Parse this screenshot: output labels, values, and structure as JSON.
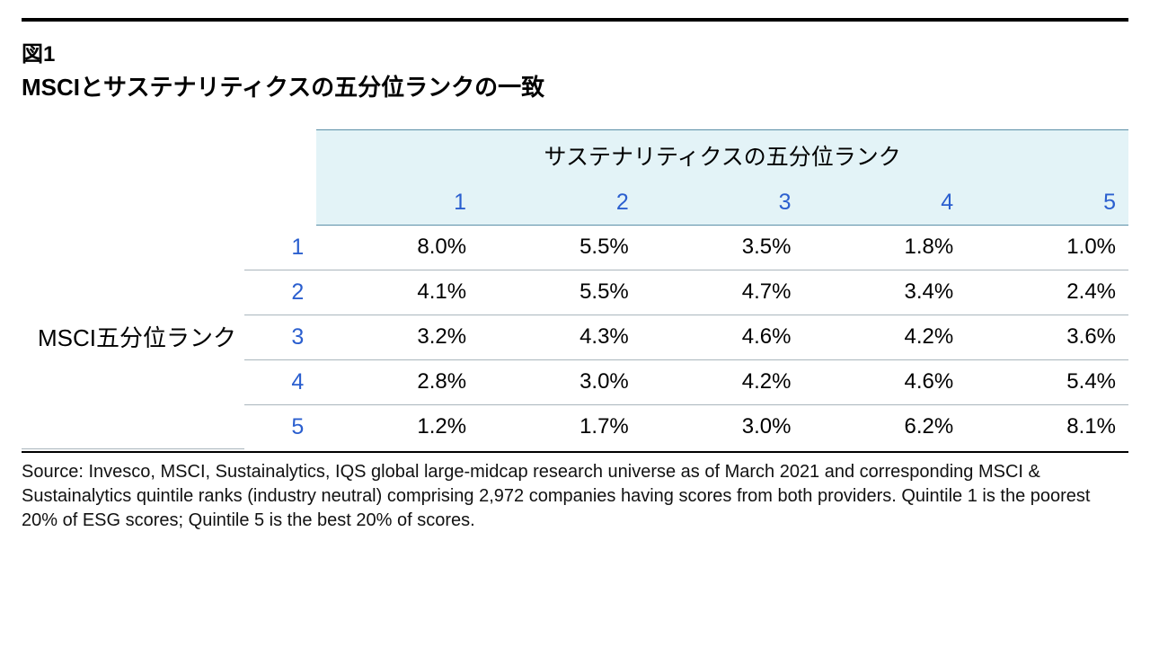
{
  "figure": {
    "label": "図1",
    "title": "MSCIとサステナリティクスの五分位ランクの一致"
  },
  "table": {
    "col_group_header": "サステナリティクスの五分位ランク",
    "row_group_header": "MSCI五分位ランク",
    "col_headers": [
      "1",
      "2",
      "3",
      "4",
      "5"
    ],
    "row_headers": [
      "1",
      "2",
      "3",
      "4",
      "5"
    ],
    "rows": [
      [
        "8.0%",
        "5.5%",
        "3.5%",
        "1.8%",
        "1.0%"
      ],
      [
        "4.1%",
        "5.5%",
        "4.7%",
        "3.4%",
        "2.4%"
      ],
      [
        "3.2%",
        "4.3%",
        "4.6%",
        "4.2%",
        "3.6%"
      ],
      [
        "2.8%",
        "3.0%",
        "4.2%",
        "4.6%",
        "5.4%"
      ],
      [
        "1.2%",
        "1.7%",
        "3.0%",
        "6.2%",
        "8.1%"
      ]
    ],
    "colors": {
      "header_bg": "#e3f3f7",
      "header_num_color": "#2b5fcf",
      "rule_color": "#000000",
      "cell_border_color": "#aab6bd",
      "header_border_color": "#5b8fa8",
      "text_color": "#000000",
      "background": "#ffffff"
    },
    "fonts": {
      "title_fontsize": 26,
      "label_fontsize": 24,
      "header_fontsize": 25,
      "cell_fontsize": 24,
      "source_fontsize": 20
    }
  },
  "source": "Source: Invesco, MSCI, Sustainalytics, IQS global large-midcap research universe as of March 2021 and corresponding MSCI & Sustainalytics quintile ranks (industry neutral) comprising 2,972 companies having scores from both providers. Quintile 1 is the poorest 20% of ESG scores; Quintile 5 is the best 20% of scores."
}
